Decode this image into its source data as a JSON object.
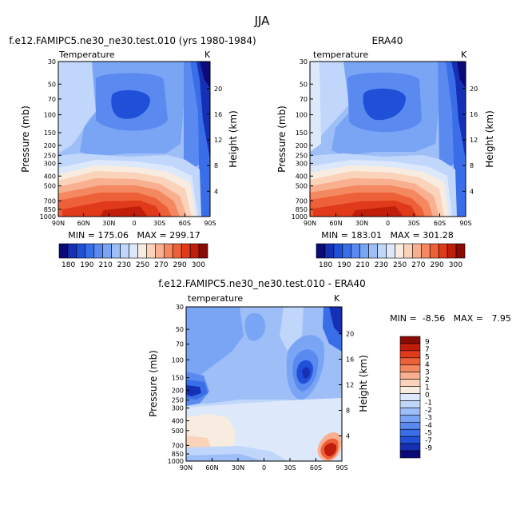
{
  "figure": {
    "title": "JJA",
    "panels": [
      {
        "heading": "f.e12.FAMIPC5.ne30_ne30.test.010 (yrs 1980-1984)",
        "left_label": "Temperature",
        "unit": "K",
        "ylabel": "Pressure (mb)",
        "ylabel_right": "Height (km)",
        "min_max": "MIN = 175.06   MAX = 299.17"
      },
      {
        "heading": "ERA40",
        "left_label": "temperature",
        "unit": "K",
        "ylabel": "Pressure (mb)",
        "ylabel_right": "Height (km)",
        "min_max": "MIN = 183.01   MAX = 301.28"
      },
      {
        "heading": "f.e12.FAMIPC5.ne30_ne30.test.010 - ERA40",
        "left_label": "temperature",
        "unit": "K",
        "ylabel": "Pressure (mb)",
        "ylabel_right": "Height (km)",
        "min_max": "MIN =  -8.56   MAX =   7.95"
      }
    ],
    "colors": {
      "abs_scale": [
        "#0a0a78",
        "#1530b4",
        "#2050d8",
        "#3a6ee8",
        "#5a8af0",
        "#7aa4f4",
        "#9ebef8",
        "#c0d6fb",
        "#dde8fb",
        "#f8ece0",
        "#fbd3bb",
        "#f8b090",
        "#f48860",
        "#ee6038",
        "#e03a1a",
        "#c01e0a",
        "#8a0a06"
      ],
      "diff_scale": [
        "#8a0a06",
        "#c01e0a",
        "#e03a1a",
        "#ee6038",
        "#f48860",
        "#f8b090",
        "#fbd3bb",
        "#f8ece0",
        "#dde8fb",
        "#c0d6fb",
        "#9ebef8",
        "#7aa4f4",
        "#5a8af0",
        "#3a6ee8",
        "#2050d8",
        "#1530b4",
        "#0a0a78"
      ]
    }
  },
  "chart_data": [
    {
      "type": "heatmap",
      "title": "f.e12.FAMIPC5.ne30_ne30.test.010 (yrs 1980-1984)",
      "variable": "Temperature",
      "unit": "K",
      "xlabel": "",
      "xtick_labels": [
        "90N",
        "60N",
        "30N",
        "0",
        "30S",
        "60S",
        "90S"
      ],
      "x_values": [
        90,
        60,
        30,
        0,
        -30,
        -60,
        -90
      ],
      "ylabel": "Pressure (mb)",
      "ytick_labels": [
        "30",
        "50",
        "70",
        "100",
        "150",
        "200",
        "250",
        "300",
        "400",
        "500",
        "700",
        "850",
        "1000"
      ],
      "y_values": [
        30,
        50,
        70,
        100,
        150,
        200,
        250,
        300,
        400,
        500,
        700,
        850,
        1000
      ],
      "y_scale": "log",
      "y_right_label": "Height (km)",
      "y_right_ticks": [
        4,
        8,
        12,
        16,
        20
      ],
      "colorbar_ticks": [
        180,
        190,
        210,
        230,
        250,
        270,
        290,
        300
      ],
      "min": 175.06,
      "max": 299.17
    },
    {
      "type": "heatmap",
      "title": "ERA40",
      "variable": "temperature",
      "unit": "K",
      "xlabel": "",
      "xtick_labels": [
        "90N",
        "60N",
        "30N",
        "0",
        "30S",
        "60S",
        "90S"
      ],
      "x_values": [
        90,
        60,
        30,
        0,
        -30,
        -60,
        -90
      ],
      "ylabel": "Pressure (mb)",
      "ytick_labels": [
        "30",
        "50",
        "70",
        "100",
        "150",
        "200",
        "250",
        "300",
        "400",
        "500",
        "700",
        "850",
        "1000"
      ],
      "y_values": [
        30,
        50,
        70,
        100,
        150,
        200,
        250,
        300,
        400,
        500,
        700,
        850,
        1000
      ],
      "y_scale": "log",
      "y_right_label": "Height (km)",
      "y_right_ticks": [
        4,
        8,
        12,
        16,
        20
      ],
      "colorbar_ticks": [
        180,
        190,
        210,
        230,
        250,
        270,
        290,
        300
      ],
      "min": 183.01,
      "max": 301.28
    },
    {
      "type": "heatmap",
      "title": "f.e12.FAMIPC5.ne30_ne30.test.010 - ERA40",
      "variable": "temperature",
      "unit": "K",
      "xlabel": "",
      "xtick_labels": [
        "90N",
        "60N",
        "30N",
        "0",
        "30S",
        "60S",
        "90S"
      ],
      "x_values": [
        90,
        60,
        30,
        0,
        -30,
        -60,
        -90
      ],
      "ylabel": "Pressure (mb)",
      "ytick_labels": [
        "30",
        "50",
        "70",
        "100",
        "150",
        "200",
        "250",
        "300",
        "400",
        "500",
        "700",
        "850",
        "1000"
      ],
      "y_values": [
        30,
        50,
        70,
        100,
        150,
        200,
        250,
        300,
        400,
        500,
        700,
        850,
        1000
      ],
      "y_scale": "log",
      "y_right_label": "Height (km)",
      "y_right_ticks": [
        4,
        8,
        12,
        16,
        20
      ],
      "colorbar_ticks": [
        9,
        7,
        5,
        4,
        3,
        2,
        1,
        0,
        -1,
        -2,
        -3,
        -4,
        -5,
        -7,
        -9
      ],
      "min": -8.56,
      "max": 7.95
    }
  ]
}
